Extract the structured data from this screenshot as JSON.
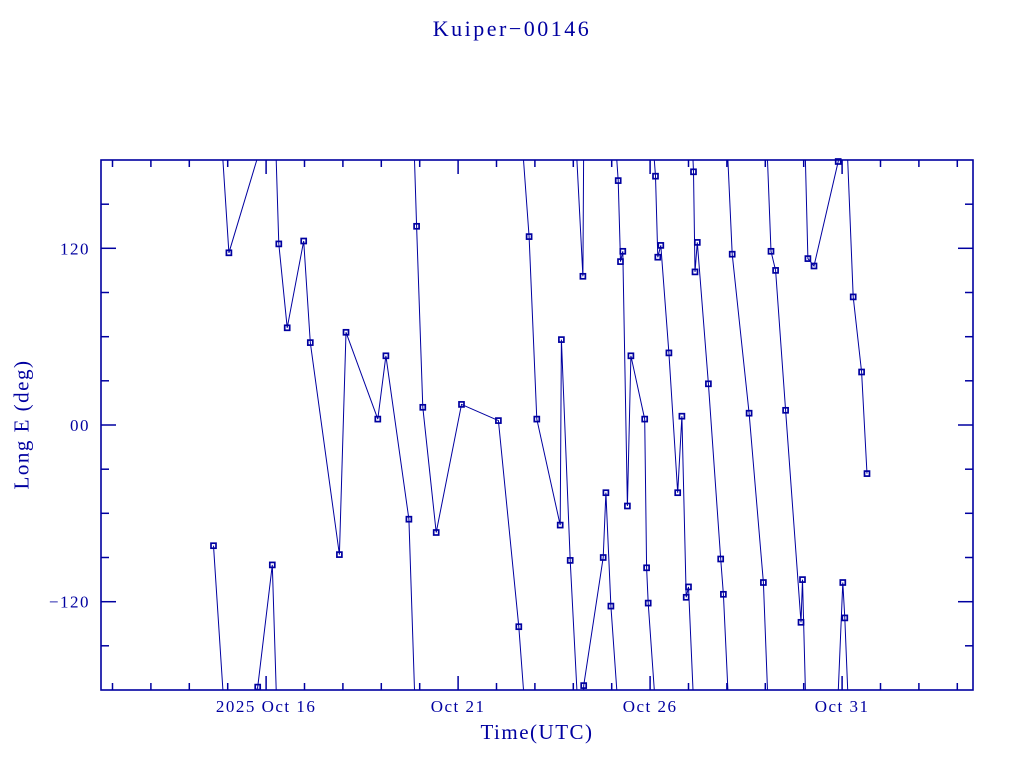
{
  "title": "Kuiper−00146",
  "colors": {
    "plot": "#0000A0",
    "background": "#FFFFFF"
  },
  "chart_data": {
    "type": "line",
    "title": "Kuiper−00146",
    "xlabel": "Time(UTC)",
    "ylabel": "Long E (deg)",
    "legend": null,
    "grid": false,
    "marker": "square",
    "wrap_at_deg": 180,
    "x_axis": {
      "unit": "days relative to 2025 Oct 16 00:00 UTC",
      "range": [
        -4.3,
        18.41
      ],
      "minor_tick_step_days": 1,
      "major_ticks": [
        {
          "t": 0,
          "label": "2025 Oct 16"
        },
        {
          "t": 5,
          "label": "Oct 21"
        },
        {
          "t": 10,
          "label": "Oct 26"
        },
        {
          "t": 15,
          "label": "Oct 31"
        }
      ]
    },
    "y_axis": {
      "unit": "deg",
      "range": [
        -180,
        180
      ],
      "minor_tick_step_deg": 30,
      "major_ticks": [
        {
          "value": 120,
          "label": "120"
        },
        {
          "value": 0,
          "label": "00"
        },
        {
          "value": -120,
          "label": "−120"
        }
      ]
    },
    "series": [
      {
        "name": "longitude-east",
        "points": [
          [
            -1.37,
            -82
          ],
          [
            -0.97,
            117
          ],
          [
            -0.22,
            -178
          ],
          [
            0.16,
            -95
          ],
          [
            0.33,
            123
          ],
          [
            0.55,
            66
          ],
          [
            0.98,
            125
          ],
          [
            1.15,
            56
          ],
          [
            1.91,
            -88
          ],
          [
            2.08,
            63
          ],
          [
            2.91,
            4
          ],
          [
            3.12,
            47
          ],
          [
            3.72,
            -64
          ],
          [
            3.92,
            135
          ],
          [
            4.08,
            12
          ],
          [
            4.43,
            -73
          ],
          [
            5.09,
            14
          ],
          [
            6.05,
            3
          ],
          [
            6.58,
            -137
          ],
          [
            6.85,
            128
          ],
          [
            7.05,
            4
          ],
          [
            7.66,
            -68
          ],
          [
            7.69,
            58
          ],
          [
            7.92,
            -92
          ],
          [
            8.25,
            101
          ],
          [
            8.27,
            -177
          ],
          [
            8.78,
            -90
          ],
          [
            8.85,
            -46
          ],
          [
            8.98,
            -123
          ],
          [
            9.17,
            166
          ],
          [
            9.23,
            111
          ],
          [
            9.29,
            118
          ],
          [
            9.41,
            -55
          ],
          [
            9.5,
            47
          ],
          [
            9.86,
            4
          ],
          [
            9.91,
            -97
          ],
          [
            9.95,
            -121
          ],
          [
            10.14,
            169
          ],
          [
            10.2,
            114
          ],
          [
            10.28,
            122
          ],
          [
            10.49,
            49
          ],
          [
            10.72,
            -46
          ],
          [
            10.83,
            6
          ],
          [
            10.94,
            -117
          ],
          [
            11.0,
            -110
          ],
          [
            11.13,
            172
          ],
          [
            11.17,
            104
          ],
          [
            11.23,
            124
          ],
          [
            11.52,
            28
          ],
          [
            11.84,
            -91
          ],
          [
            11.91,
            -115
          ],
          [
            12.14,
            116
          ],
          [
            12.58,
            8
          ],
          [
            12.95,
            -107
          ],
          [
            13.15,
            118
          ],
          [
            13.27,
            105
          ],
          [
            13.53,
            10
          ],
          [
            13.93,
            -134
          ],
          [
            13.97,
            -105
          ],
          [
            14.11,
            113
          ],
          [
            14.27,
            108
          ],
          [
            14.9,
            179
          ],
          [
            15.02,
            -107
          ],
          [
            15.07,
            -131
          ],
          [
            15.29,
            87
          ],
          [
            15.51,
            36
          ],
          [
            15.65,
            -33
          ]
        ]
      }
    ]
  }
}
